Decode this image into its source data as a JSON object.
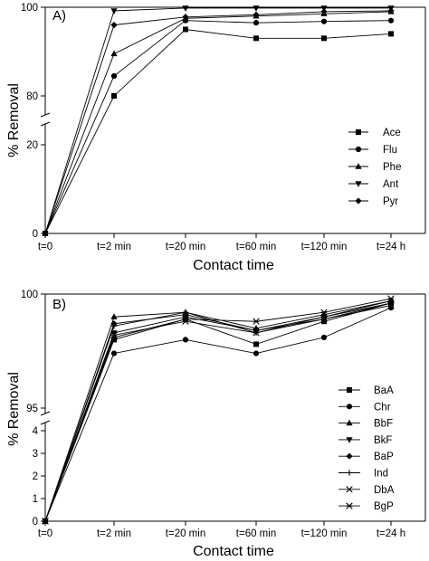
{
  "chart_data": [
    {
      "type": "line",
      "panel_label": "A)",
      "categories": [
        "t=0",
        "t=2 min",
        "t=20 min",
        "t=60 min",
        "t=120 min",
        "t=24 h"
      ],
      "xlabel": "Contact time",
      "ylabel": "% Removal",
      "y_axis_break": {
        "lower_range": [
          0,
          20
        ],
        "upper_range": [
          80,
          100
        ]
      },
      "y_ticks": [
        0,
        20,
        80,
        100
      ],
      "legend_position": "right",
      "series": [
        {
          "name": "Ace",
          "marker": "square",
          "values": [
            0,
            80,
            95,
            93,
            93,
            94
          ]
        },
        {
          "name": "Flu",
          "marker": "circle",
          "values": [
            0,
            84.5,
            97,
            96.5,
            96.8,
            97
          ]
        },
        {
          "name": "Phe",
          "marker": "triangle-up",
          "values": [
            0,
            89.5,
            97.5,
            98,
            98.5,
            99
          ]
        },
        {
          "name": "Ant",
          "marker": "triangle-down",
          "values": [
            0,
            99.2,
            99.8,
            99.8,
            99.8,
            99.8
          ]
        },
        {
          "name": "Pyr",
          "marker": "diamond",
          "values": [
            0,
            96,
            97.8,
            98.3,
            99,
            99.2
          ]
        }
      ]
    },
    {
      "type": "line",
      "panel_label": "B)",
      "categories": [
        "t=0",
        "t=2 min",
        "t=20 min",
        "t=60 min",
        "t=120 min",
        "t=24 h"
      ],
      "xlabel": "Contact time",
      "ylabel": "% Removal",
      "y_axis_break": {
        "lower_range": [
          0,
          5
        ],
        "upper_range": [
          95,
          100
        ]
      },
      "y_ticks": [
        0,
        1,
        2,
        3,
        4,
        95,
        100
      ],
      "legend_position": "right",
      "series": [
        {
          "name": "BaA",
          "marker": "square",
          "values": [
            0,
            98.0,
            98.9,
            97.8,
            98.8,
            99.6
          ]
        },
        {
          "name": "Chr",
          "marker": "circle",
          "values": [
            0,
            97.4,
            98.0,
            97.4,
            98.1,
            99.4
          ]
        },
        {
          "name": "BbF",
          "marker": "triangle-up",
          "values": [
            0,
            99.0,
            99.2,
            98.5,
            99.1,
            99.7
          ]
        },
        {
          "name": "BkF",
          "marker": "triangle-down",
          "values": [
            0,
            98.3,
            99.0,
            98.4,
            98.9,
            99.6
          ]
        },
        {
          "name": "BaP",
          "marker": "diamond",
          "values": [
            0,
            98.7,
            99.1,
            98.4,
            99.0,
            99.7
          ]
        },
        {
          "name": "Ind",
          "marker": "plus",
          "values": [
            0,
            98.6,
            99.2,
            98.3,
            99.0,
            99.6
          ]
        },
        {
          "name": "DbA",
          "marker": "x",
          "values": [
            0,
            98.2,
            98.8,
            98.3,
            98.9,
            99.5
          ]
        },
        {
          "name": "BgP",
          "marker": "asterisk",
          "values": [
            0,
            98.1,
            98.9,
            98.8,
            99.2,
            99.8
          ]
        }
      ]
    }
  ]
}
